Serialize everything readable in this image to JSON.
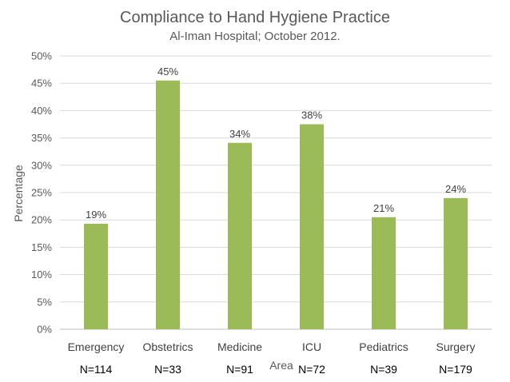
{
  "chart_data": {
    "type": "bar",
    "title": "Compliance to Hand Hygiene Practice",
    "subtitle": "Al-Iman Hospital; October 2012.",
    "xlabel": "Area",
    "ylabel": "Percentage",
    "categories": [
      "Emergency",
      "Obstetrics",
      "Medicine",
      "ICU",
      "Pediatrics",
      "Surgery"
    ],
    "values": [
      19.3,
      45.5,
      34.1,
      37.5,
      20.5,
      24.0
    ],
    "data_labels": [
      "19%",
      "45%",
      "34%",
      "38%",
      "21%",
      "24%"
    ],
    "sample_sizes": [
      "N=114",
      "N=33",
      "N=91",
      "N=72",
      "N=39",
      "N=179"
    ],
    "yticks": [
      "0%",
      "5%",
      "10%",
      "15%",
      "20%",
      "25%",
      "30%",
      "35%",
      "40%",
      "45%",
      "50%"
    ],
    "ylim": [
      0,
      50
    ],
    "ytick_step": 5,
    "grid": true,
    "legend": "none",
    "bar_color": "#9bbb59"
  }
}
